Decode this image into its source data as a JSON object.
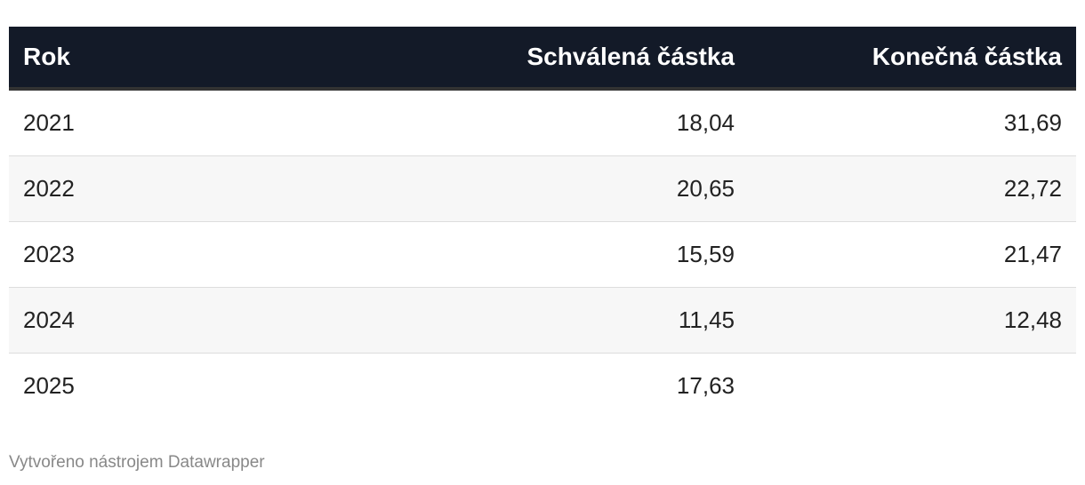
{
  "table": {
    "header": [
      "Rok",
      "Schválená částka",
      "Konečná částka"
    ],
    "rows": [
      [
        "2021",
        "18,04",
        "31,69"
      ],
      [
        "2022",
        "20,65",
        "22,72"
      ],
      [
        "2023",
        "15,59",
        "21,47"
      ],
      [
        "2024",
        "11,45",
        "12,48"
      ],
      [
        "2025",
        "17,63",
        null
      ]
    ]
  },
  "footer": "Vytvořeno nástrojem Datawrapper"
}
